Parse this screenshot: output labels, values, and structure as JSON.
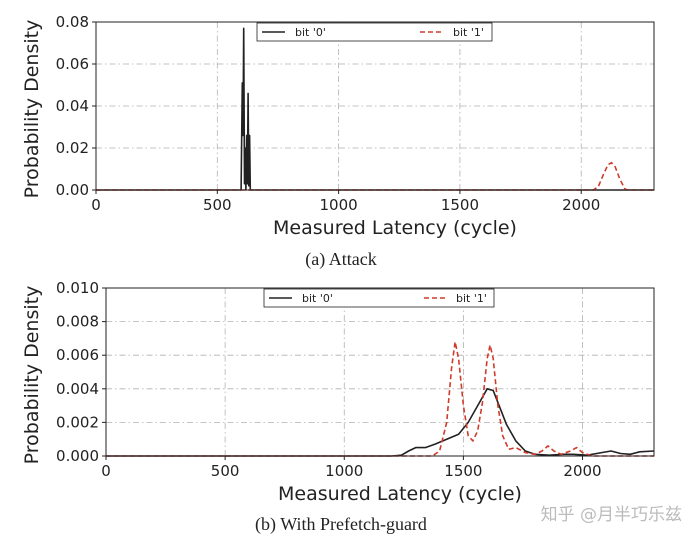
{
  "chart_data": [
    {
      "type": "line",
      "caption": "(a)  Attack",
      "xlabel": "Measured Latency (cycle)",
      "ylabel": "Probability Density",
      "xlim": [
        0,
        2300
      ],
      "ylim": [
        0,
        0.08
      ],
      "xticks": [
        0,
        500,
        1000,
        1500,
        2000
      ],
      "xtick_labels": [
        "0",
        "500",
        "1000",
        "1500",
        "2000"
      ],
      "yticks": [
        0,
        0.02,
        0.04,
        0.06,
        0.08
      ],
      "ytick_labels": [
        "0.00",
        "0.02",
        "0.04",
        "0.06",
        "0.08"
      ],
      "grid": true,
      "legend_position": "top",
      "series": [
        {
          "name": "bit '0'",
          "color": "#222222",
          "style": "solid",
          "points": [
            [
              0,
              0
            ],
            [
              598,
              0
            ],
            [
              603,
              0.051
            ],
            [
              606,
              0.026
            ],
            [
              609,
              0.077
            ],
            [
              612,
              0.003
            ],
            [
              615,
              0.02
            ],
            [
              618,
              0.0
            ],
            [
              621,
              0.026
            ],
            [
              624,
              0.003
            ],
            [
              627,
              0.046
            ],
            [
              630,
              0.002
            ],
            [
              633,
              0.026
            ],
            [
              636,
              0.0
            ],
            [
              2300,
              0
            ]
          ]
        },
        {
          "name": "bit '1'",
          "color": "#d03a2a",
          "style": "dashed",
          "points": [
            [
              0,
              0
            ],
            [
              2050,
              0
            ],
            [
              2070,
              0.0015
            ],
            [
              2090,
              0.007
            ],
            [
              2110,
              0.012
            ],
            [
              2125,
              0.013
            ],
            [
              2140,
              0.011
            ],
            [
              2160,
              0.005
            ],
            [
              2180,
              0.0005
            ],
            [
              2190,
              0
            ],
            [
              2300,
              0
            ]
          ]
        }
      ]
    },
    {
      "type": "line",
      "caption": "(b) With Prefetch-guard",
      "xlabel": "Measured Latency (cycle)",
      "ylabel": "Probability Density",
      "xlim": [
        0,
        2300
      ],
      "ylim": [
        0,
        0.01
      ],
      "xticks": [
        0,
        500,
        1000,
        1500,
        2000
      ],
      "xtick_labels": [
        "0",
        "500",
        "1000",
        "1500",
        "2000"
      ],
      "yticks": [
        0,
        0.002,
        0.004,
        0.006,
        0.008,
        0.01
      ],
      "ytick_labels": [
        "0.000",
        "0.002",
        "0.004",
        "0.006",
        "0.008",
        "0.010"
      ],
      "grid": true,
      "legend_position": "top",
      "series": [
        {
          "name": "bit '0'",
          "color": "#222222",
          "style": "solid",
          "points": [
            [
              0,
              0
            ],
            [
              1200,
              0
            ],
            [
              1240,
              5e-05
            ],
            [
              1270,
              0.0003
            ],
            [
              1300,
              0.0005
            ],
            [
              1340,
              0.0005
            ],
            [
              1380,
              0.0007
            ],
            [
              1430,
              0.001
            ],
            [
              1480,
              0.0013
            ],
            [
              1520,
              0.002
            ],
            [
              1560,
              0.003
            ],
            [
              1600,
              0.004
            ],
            [
              1625,
              0.0039
            ],
            [
              1650,
              0.003
            ],
            [
              1680,
              0.0019
            ],
            [
              1720,
              0.0009
            ],
            [
              1760,
              0.0003
            ],
            [
              1800,
              0.0001
            ],
            [
              1860,
              5e-05
            ],
            [
              1920,
              0.0001
            ],
            [
              1960,
              0.0001
            ],
            [
              2020,
              5e-05
            ],
            [
              2080,
              0.0002
            ],
            [
              2120,
              0.0003
            ],
            [
              2160,
              0.00015
            ],
            [
              2200,
              0.0001
            ],
            [
              2240,
              0.00025
            ],
            [
              2300,
              0.0003
            ]
          ]
        },
        {
          "name": "bit '1'",
          "color": "#d03a2a",
          "style": "dashed",
          "points": [
            [
              0,
              0
            ],
            [
              1370,
              0
            ],
            [
              1400,
              0.0003
            ],
            [
              1430,
              0.002
            ],
            [
              1450,
              0.0052
            ],
            [
              1465,
              0.0068
            ],
            [
              1480,
              0.0058
            ],
            [
              1500,
              0.003
            ],
            [
              1520,
              0.0012
            ],
            [
              1540,
              0.0009
            ],
            [
              1560,
              0.0015
            ],
            [
              1580,
              0.0032
            ],
            [
              1600,
              0.0058
            ],
            [
              1612,
              0.0066
            ],
            [
              1625,
              0.0058
            ],
            [
              1645,
              0.003
            ],
            [
              1665,
              0.0012
            ],
            [
              1690,
              0.0004
            ],
            [
              1720,
              0.0005
            ],
            [
              1760,
              0.0002
            ],
            [
              1800,
              0.0001
            ],
            [
              1830,
              0.0003
            ],
            [
              1855,
              0.0006
            ],
            [
              1880,
              0.0003
            ],
            [
              1910,
              0.0001
            ],
            [
              1950,
              0.0003
            ],
            [
              1975,
              0.0005
            ],
            [
              2000,
              0.0002
            ],
            [
              2040,
              0.0
            ],
            [
              2300,
              0
            ]
          ]
        }
      ]
    }
  ],
  "watermark": "知乎 @月半巧乐兹"
}
